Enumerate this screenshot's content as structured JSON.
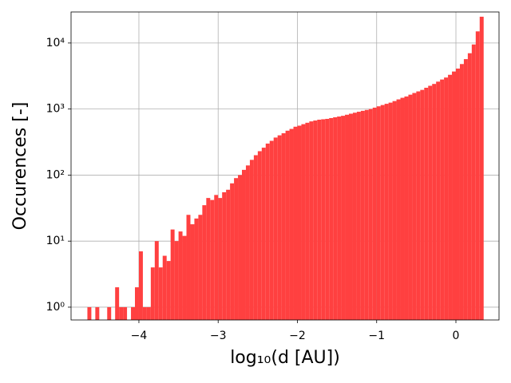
{
  "chart_data": {
    "type": "histogram",
    "xlabel": "log₁₀(d [AU])",
    "ylabel": "Occurences [-]",
    "color": "#ff4040",
    "log_y": true,
    "grid": true,
    "bins": [
      -4.65,
      -4.6,
      -4.55,
      -4.5,
      -4.45,
      -4.4,
      -4.35,
      -4.3,
      -4.25,
      -4.2,
      -4.15,
      -4.1,
      -4.05,
      -4.0,
      -3.95,
      -3.9,
      -3.85,
      -3.8,
      -3.75,
      -3.7,
      -3.65,
      -3.6,
      -3.55,
      -3.5,
      -3.45,
      -3.4,
      -3.35,
      -3.3,
      -3.25,
      -3.2,
      -3.15,
      -3.1,
      -3.05,
      -3.0,
      -2.95,
      -2.9,
      -2.85,
      -2.8,
      -2.75,
      -2.7,
      -2.65,
      -2.6,
      -2.55,
      -2.5,
      -2.45,
      -2.4,
      -2.35,
      -2.3,
      -2.25,
      -2.2,
      -2.15,
      -2.1,
      -2.05,
      -2.0,
      -1.95,
      -1.9,
      -1.85,
      -1.8,
      -1.75,
      -1.7,
      -1.65,
      -1.6,
      -1.55,
      -1.5,
      -1.45,
      -1.4,
      -1.35,
      -1.3,
      -1.25,
      -1.2,
      -1.15,
      -1.1,
      -1.05,
      -1.0,
      -0.95,
      -0.9,
      -0.85,
      -0.8,
      -0.75,
      -0.7,
      -0.65,
      -0.6,
      -0.55,
      -0.5,
      -0.45,
      -0.4,
      -0.35,
      -0.3,
      -0.25,
      -0.2,
      -0.15,
      -0.1,
      -0.05,
      0.0,
      0.05,
      0.1,
      0.15,
      0.2,
      0.25,
      0.3,
      0.35
    ],
    "values": [
      1,
      0,
      1,
      0,
      0,
      1,
      0,
      2,
      1,
      1,
      0,
      1,
      2,
      7,
      1,
      1,
      4,
      10,
      4,
      6,
      5,
      15,
      10,
      14,
      12,
      25,
      18,
      22,
      25,
      35,
      45,
      42,
      50,
      45,
      55,
      60,
      75,
      90,
      100,
      120,
      140,
      170,
      200,
      230,
      260,
      300,
      330,
      370,
      400,
      430,
      470,
      500,
      540,
      560,
      590,
      620,
      650,
      670,
      690,
      700,
      710,
      730,
      750,
      770,
      790,
      820,
      850,
      880,
      910,
      940,
      970,
      1000,
      1050,
      1100,
      1150,
      1200,
      1250,
      1320,
      1400,
      1480,
      1550,
      1650,
      1750,
      1850,
      1950,
      2100,
      2250,
      2400,
      2600,
      2800,
      3000,
      3300,
      3700,
      4100,
      4800,
      5700,
      7000,
      9500,
      15000,
      25000
    ],
    "xlim": [
      -4.856,
      0.544
    ],
    "ylim": [
      0.64,
      29500
    ],
    "xticks": [
      {
        "value": -4,
        "label": "−4"
      },
      {
        "value": -3,
        "label": "−3"
      },
      {
        "value": -2,
        "label": "−2"
      },
      {
        "value": -1,
        "label": "−1"
      },
      0
    ],
    "yticks": [
      {
        "value": 1,
        "label": "10⁰"
      },
      {
        "value": 10,
        "label": "10¹"
      },
      {
        "value": 100,
        "label": "10²"
      },
      {
        "value": 1000,
        "label": "10³"
      },
      {
        "value": 10000,
        "label": "10⁴"
      }
    ]
  }
}
